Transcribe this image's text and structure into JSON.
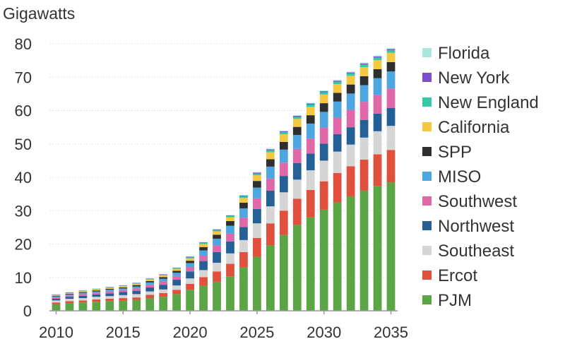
{
  "chart_data": {
    "type": "bar",
    "stacked": true,
    "title": "",
    "ylabel": "Gigawatts",
    "xlabel": "",
    "ylim": [
      0,
      80
    ],
    "yticks": [
      0,
      10,
      20,
      30,
      40,
      50,
      60,
      70,
      80
    ],
    "xticks": [
      "2010",
      "2015",
      "2020",
      "2025",
      "2030",
      "2035"
    ],
    "grid": true,
    "legend_position": "right",
    "categories": [
      "2010",
      "2011",
      "2012",
      "2013",
      "2014",
      "2015",
      "2016",
      "2017",
      "2018",
      "2019",
      "2020",
      "2021",
      "2022",
      "2023",
      "2024",
      "2025",
      "2026",
      "2027",
      "2028",
      "2029",
      "2030",
      "2031",
      "2032",
      "2033",
      "2034",
      "2035"
    ],
    "series": [
      {
        "name": "PJM",
        "color": "#5aa545",
        "values": [
          2.0,
          2.3,
          2.5,
          2.7,
          2.9,
          3.0,
          3.2,
          3.8,
          4.2,
          5.0,
          6.3,
          7.5,
          8.7,
          10.3,
          13.0,
          16.2,
          19.6,
          22.7,
          25.8,
          28.0,
          30.3,
          32.5,
          34.3,
          36.0,
          37.4,
          38.5
        ]
      },
      {
        "name": "Ercot",
        "color": "#e0503c",
        "values": [
          0.5,
          0.6,
          0.6,
          0.7,
          0.7,
          0.8,
          0.8,
          1.0,
          1.1,
          1.3,
          1.8,
          2.6,
          3.1,
          3.8,
          4.6,
          5.6,
          6.6,
          7.3,
          7.8,
          8.2,
          8.5,
          8.8,
          9.0,
          9.3,
          9.5,
          9.7
        ]
      },
      {
        "name": "Southeast",
        "color": "#d5d5d5",
        "values": [
          0.6,
          0.7,
          0.7,
          0.8,
          0.8,
          0.9,
          1.0,
          1.0,
          1.1,
          1.3,
          1.6,
          2.1,
          2.6,
          3.1,
          3.6,
          4.4,
          5.1,
          5.5,
          5.7,
          5.9,
          6.2,
          6.4,
          6.5,
          6.6,
          6.9,
          7.2
        ]
      },
      {
        "name": "Northwest",
        "color": "#245f96",
        "values": [
          0.5,
          0.6,
          0.7,
          0.7,
          0.8,
          0.9,
          1.0,
          1.2,
          1.4,
          1.7,
          2.1,
          2.7,
          3.2,
          3.6,
          3.9,
          4.3,
          4.7,
          4.9,
          5.0,
          5.0,
          5.1,
          5.2,
          5.2,
          5.3,
          5.3,
          5.4
        ]
      },
      {
        "name": "Southwest",
        "color": "#e067a8",
        "values": [
          0.4,
          0.4,
          0.5,
          0.5,
          0.6,
          0.6,
          0.7,
          0.8,
          1.0,
          1.1,
          1.3,
          1.6,
          2.0,
          2.3,
          2.8,
          3.2,
          3.6,
          4.0,
          4.2,
          4.5,
          4.8,
          5.0,
          5.2,
          5.4,
          5.6,
          5.8
        ]
      },
      {
        "name": "MISO",
        "color": "#4ea6e0",
        "values": [
          0.3,
          0.3,
          0.4,
          0.4,
          0.5,
          0.5,
          0.6,
          0.7,
          0.8,
          1.0,
          1.2,
          1.6,
          2.0,
          2.4,
          2.8,
          3.2,
          3.6,
          3.9,
          4.2,
          4.5,
          4.7,
          4.8,
          4.9,
          5.0,
          5.0,
          5.1
        ]
      },
      {
        "name": "SPP",
        "color": "#2f2f2f",
        "values": [
          0.2,
          0.2,
          0.2,
          0.3,
          0.3,
          0.3,
          0.4,
          0.4,
          0.5,
          0.6,
          0.7,
          1.0,
          1.2,
          1.4,
          1.7,
          2.0,
          2.2,
          2.3,
          2.4,
          2.5,
          2.6,
          2.6,
          2.7,
          2.7,
          2.7,
          2.8
        ]
      },
      {
        "name": "California",
        "color": "#f5c842",
        "values": [
          0.2,
          0.2,
          0.3,
          0.3,
          0.3,
          0.4,
          0.4,
          0.5,
          0.5,
          0.6,
          0.7,
          0.9,
          1.0,
          1.1,
          1.4,
          1.7,
          2.1,
          2.3,
          2.4,
          2.5,
          2.6,
          2.6,
          2.6,
          2.7,
          2.7,
          2.8
        ]
      },
      {
        "name": "New England",
        "color": "#35c9a8",
        "values": [
          0.1,
          0.1,
          0.1,
          0.1,
          0.1,
          0.1,
          0.2,
          0.2,
          0.2,
          0.2,
          0.3,
          0.3,
          0.4,
          0.4,
          0.5,
          0.5,
          0.6,
          0.6,
          0.6,
          0.7,
          0.7,
          0.7,
          0.7,
          0.8,
          0.8,
          0.8
        ]
      },
      {
        "name": "New York",
        "color": "#7b4fc9",
        "values": [
          0.1,
          0.1,
          0.1,
          0.1,
          0.1,
          0.1,
          0.1,
          0.1,
          0.1,
          0.1,
          0.2,
          0.2,
          0.2,
          0.2,
          0.2,
          0.3,
          0.3,
          0.3,
          0.3,
          0.3,
          0.3,
          0.3,
          0.3,
          0.3,
          0.3,
          0.3
        ]
      },
      {
        "name": "Florida",
        "color": "#a8e6de",
        "values": [
          0.1,
          0.1,
          0.1,
          0.1,
          0.1,
          0.1,
          0.1,
          0.1,
          0.1,
          0.1,
          0.1,
          0.1,
          0.1,
          0.1,
          0.2,
          0.2,
          0.2,
          0.2,
          0.2,
          0.2,
          0.2,
          0.3,
          0.3,
          0.3,
          0.3,
          0.3
        ]
      }
    ],
    "legend_order": [
      "Florida",
      "New York",
      "New England",
      "California",
      "SPP",
      "MISO",
      "Southwest",
      "Northwest",
      "Southeast",
      "Ercot",
      "PJM"
    ]
  }
}
